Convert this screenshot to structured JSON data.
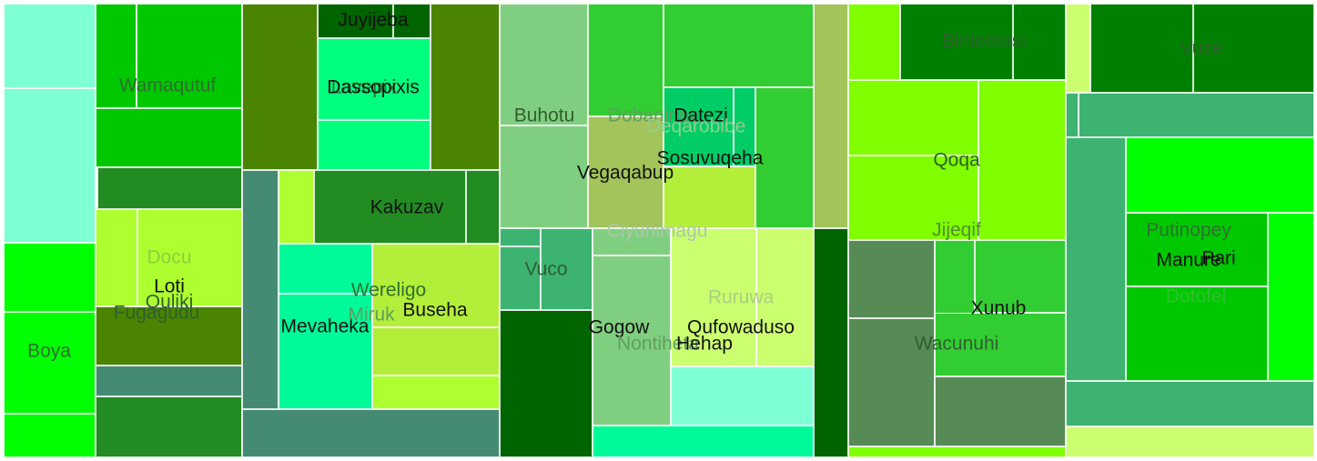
{
  "chart_data": {
    "type": "treemap",
    "title": "",
    "groups": [
      {
        "name": "Boya",
        "value": 14,
        "color": "#00ff00",
        "children": [
          {
            "value": 1.6,
            "color": "#7fffd4"
          },
          {
            "value": 3.6,
            "color": "#7fffd4"
          },
          {
            "value": 2.4,
            "color": "#00ff00"
          },
          {
            "value": 2.5,
            "color": "#00ff00"
          },
          {
            "value": 1.0,
            "color": "#00ff00"
          }
        ]
      },
      {
        "name": "Wamaqutuf",
        "value": 15,
        "color": "#00c800",
        "children": [
          {
            "value": 2.0,
            "color": "#00c800"
          },
          {
            "value": 2.5,
            "color": "#00c800"
          },
          {
            "value": 1.5,
            "color": "#00c800"
          }
        ]
      },
      {
        "name": "Docu",
        "value": 6.4,
        "color": "#adff2f",
        "children": [
          {
            "value": 1.0,
            "color": "#228b22"
          },
          {
            "value": 3.5,
            "color": "#adff2f"
          },
          {
            "value": 1.5,
            "color": "#4a8400"
          }
        ]
      },
      {
        "name": "Loti",
        "value": 2,
        "color": "#adff2f",
        "children": []
      },
      {
        "name": "Quliki",
        "value": 1.5,
        "color": "#adff2f",
        "children": []
      },
      {
        "name": "Fugagudu",
        "value": 3.5,
        "color": "#4a8400",
        "children": [
          {
            "value": 1.0,
            "color": "#4a8400"
          },
          {
            "value": 0.8,
            "color": "#458b74"
          },
          {
            "value": 2.0,
            "color": "#228b22"
          }
        ]
      },
      {
        "name": "Juyijeba",
        "value": 0.6,
        "color": "#006400",
        "children": []
      },
      {
        "name": "Lavepix",
        "value": 4,
        "color": "#00ff7f",
        "children": []
      },
      {
        "name": "Dassopixis",
        "value": 4,
        "color": "#00ff7f",
        "children": []
      },
      {
        "name": "Kakuzav",
        "value": 6,
        "color": "#228b22",
        "children": [
          {
            "value": 2.0,
            "color": "#4a8400"
          },
          {
            "value": 3.0,
            "color": "#4a8400"
          },
          {
            "value": 2.5,
            "color": "#458b74"
          },
          {
            "value": 1.5,
            "color": "#adff2f"
          }
        ]
      },
      {
        "name": "Wereligo",
        "value": 5,
        "color": "#00fa9a",
        "children": [
          {
            "value": 2.0,
            "color": "#00fa9a"
          },
          {
            "value": 3.5,
            "color": "#00fa9a"
          }
        ]
      },
      {
        "name": "Miruk",
        "value": 1,
        "color": "#b3ee3a",
        "children": []
      },
      {
        "name": "Buseha",
        "value": 5,
        "color": "#b3ee3a",
        "children": [
          {
            "value": 1.5,
            "color": "#b3ee3a"
          },
          {
            "value": 1.0,
            "color": "#adff2f"
          },
          {
            "value": 2.0,
            "color": "#458b74"
          }
        ]
      },
      {
        "name": "Mevaheka",
        "value": 3,
        "color": "#00fa9a",
        "children": []
      },
      {
        "name": "Buhotu",
        "value": 8,
        "color": "#80cf80",
        "children": [
          {
            "value": 3.0,
            "color": "#80cf80"
          },
          {
            "value": 3.0,
            "color": "#80cf80"
          }
        ]
      },
      {
        "name": "Vuco",
        "value": 3.5,
        "color": "#3cb371",
        "children": [
          {
            "value": 1.5,
            "color": "#3cb371"
          },
          {
            "value": 2.5,
            "color": "#006400"
          }
        ]
      },
      {
        "name": "Dobaninez",
        "value": 3,
        "color": "#32cd32",
        "children": [
          {
            "value": 3.5,
            "color": "#32cd32"
          }
        ]
      },
      {
        "name": "Datezi",
        "value": 2,
        "color": "#00cd66",
        "children": [
          {
            "value": 1.5,
            "color": "#00cd66"
          },
          {
            "value": 3.0,
            "color": "#32cd32"
          }
        ]
      },
      {
        "name": "Deqarobibe",
        "value": 1,
        "color": "#32cd32",
        "children": []
      },
      {
        "name": "Sosuvuqeha",
        "value": 2.5,
        "color": "#b3ee3a",
        "children": []
      },
      {
        "name": "Vegaqabup",
        "value": 3,
        "color": "#a2c45a",
        "children": []
      },
      {
        "name": "Ciyunimagu",
        "value": 1,
        "color": "#80cf80",
        "children": []
      },
      {
        "name": "Gogow",
        "value": 4,
        "color": "#80cf80",
        "children": []
      },
      {
        "name": "Nontiheta",
        "value": 1,
        "color": "#80cf80",
        "children": []
      },
      {
        "name": "Ruruwa",
        "value": 4,
        "color": "#ccff70",
        "children": [
          {
            "value": 2.0,
            "color": "#ccff70"
          }
        ]
      },
      {
        "name": "Qufowaduso",
        "value": 3,
        "color": "#ccff70",
        "children": [
          {
            "value": 2.0,
            "color": "#7fffd4"
          },
          {
            "value": 1.0,
            "color": "#00fa9a"
          }
        ]
      },
      {
        "name": "Hehap",
        "value": 1,
        "color": "#ccff70",
        "children": [
          {
            "value": 2.0,
            "color": "#a2c45a"
          },
          {
            "value": 2.0,
            "color": "#006400"
          }
        ]
      },
      {
        "name": "Biritemasi",
        "value": 4,
        "color": "#008000",
        "children": [
          {
            "value": 1.5,
            "color": "#7fff00"
          },
          {
            "value": 1.0,
            "color": "#008000"
          }
        ]
      },
      {
        "name": "Qoqa",
        "value": 6,
        "color": "#7fff00",
        "children": [
          {
            "value": 2.5,
            "color": "#7fff00"
          },
          {
            "value": 2.0,
            "color": "#7fff00"
          }
        ]
      },
      {
        "name": "Jijeqif",
        "value": 1,
        "color": "#7fff00",
        "children": []
      },
      {
        "name": "Xunub",
        "value": 3,
        "color": "#32cd32",
        "children": [
          {
            "value": 1.5,
            "color": "#32cd32"
          }
        ]
      },
      {
        "name": "Wacunuhi",
        "value": 4,
        "color": "#568b55",
        "children": [
          {
            "value": 2.0,
            "color": "#568b55"
          },
          {
            "value": 2.0,
            "color": "#568b55"
          },
          {
            "value": 0.3,
            "color": "#7fff00"
          }
        ]
      },
      {
        "name": "Vuze",
        "value": 6,
        "color": "#008000",
        "children": [
          {
            "value": 0.8,
            "color": "#ccff70"
          },
          {
            "value": 3.0,
            "color": "#008000"
          },
          {
            "value": 1.0,
            "color": "#3cb371"
          }
        ]
      },
      {
        "name": "Putinopey",
        "value": 2,
        "color": "#00c800",
        "children": []
      },
      {
        "name": "Manure",
        "value": 1,
        "color": "#00c800",
        "children": []
      },
      {
        "name": "Pari",
        "value": 1,
        "color": "#00c800",
        "children": []
      },
      {
        "name": "Dotofel",
        "value": 5,
        "color": "#00c800",
        "children": [
          {
            "value": 3.0,
            "color": "#3cb371"
          },
          {
            "value": 2.5,
            "color": "#00ff00"
          },
          {
            "value": 1.5,
            "color": "#3cb371"
          },
          {
            "value": 0.8,
            "color": "#ccff70"
          }
        ]
      }
    ],
    "labels": [
      {
        "text": "Wamaqutuf",
        "color": "#2f6f2f"
      },
      {
        "text": "Boya",
        "color": "#2f6f2f"
      },
      {
        "text": "Docu",
        "color": "#8fcf3f"
      },
      {
        "text": "Loti",
        "color": "#111111"
      },
      {
        "text": "Quliki",
        "color": "#2f5f2f"
      },
      {
        "text": "Fugagudu",
        "color": "#2f5f2f"
      },
      {
        "text": "Juyijeba",
        "color": "#111111"
      },
      {
        "text": "Lavepix",
        "color": "#2f6f2f"
      },
      {
        "text": "Dassopixis",
        "color": "#111111"
      },
      {
        "text": "Kakuzav",
        "color": "#111111"
      },
      {
        "text": "Mevaheka",
        "color": "#111111"
      },
      {
        "text": "Wereligo",
        "color": "#2f6f2f"
      },
      {
        "text": "Miruk",
        "color": "#5f9f5f"
      },
      {
        "text": "Buseha",
        "color": "#111111"
      },
      {
        "text": "Buhotu",
        "color": "#2f5f2f"
      },
      {
        "text": "Dobaninez",
        "color": "#5f9f5f"
      },
      {
        "text": "Datezi",
        "color": "#111111"
      },
      {
        "text": "Deqarobibe",
        "color": "#8fcf8f"
      },
      {
        "text": "Sosuvuqeha",
        "color": "#111111"
      },
      {
        "text": "Vegaqabup",
        "color": "#111111"
      },
      {
        "text": "Ciyunimagu",
        "color": "#a9c9a9"
      },
      {
        "text": "Vuco",
        "color": "#2f5f2f"
      },
      {
        "text": "Gogow",
        "color": "#111111"
      },
      {
        "text": "Nontiheta",
        "color": "#5f9f5f"
      },
      {
        "text": "Hehap",
        "color": "#111111"
      },
      {
        "text": "Qufowaduso",
        "color": "#111111"
      },
      {
        "text": "Ruruwa",
        "color": "#a9cf7f"
      },
      {
        "text": "Biritemasi",
        "color": "#2f5f2f"
      },
      {
        "text": "Qoqa",
        "color": "#2f5f2f"
      },
      {
        "text": "Jijeqif",
        "color": "#4f8f2f"
      },
      {
        "text": "Xunub",
        "color": "#111111"
      },
      {
        "text": "Wacunuhi",
        "color": "#2f5f2f"
      },
      {
        "text": "Vuze",
        "color": "#2f5f2f"
      },
      {
        "text": "Putinopey",
        "color": "#2f6f2f"
      },
      {
        "text": "Manure",
        "color": "#111111"
      },
      {
        "text": "Pari",
        "color": "#111111"
      },
      {
        "text": "Dotofel",
        "color": "#2fbf2f"
      }
    ]
  }
}
